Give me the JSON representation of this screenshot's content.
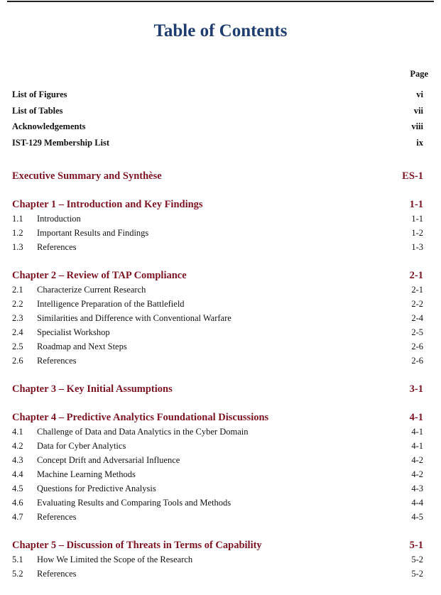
{
  "title": "Table of Contents",
  "page_header": "Page",
  "colors": {
    "title": "#1f3d6e",
    "chapter": "#7a1424"
  },
  "front_matter": [
    {
      "label": "List of Figures",
      "page": "vi"
    },
    {
      "label": "List of Tables",
      "page": "vii"
    },
    {
      "label": "Acknowledgements",
      "page": "viii"
    },
    {
      "label": "IST-129 Membership List",
      "page": "ix"
    }
  ],
  "chapters": [
    {
      "title": "Executive Summary and Synthèse",
      "page": "ES-1",
      "sections": []
    },
    {
      "title": "Chapter 1 – Introduction and Key Findings",
      "page": "1-1",
      "sections": [
        {
          "num": "1.1",
          "title": "Introduction",
          "page": "1-1"
        },
        {
          "num": "1.2",
          "title": "Important Results and Findings",
          "page": "1-2"
        },
        {
          "num": "1.3",
          "title": "References",
          "page": "1-3"
        }
      ]
    },
    {
      "title": "Chapter 2 – Review of TAP Compliance",
      "page": "2-1",
      "sections": [
        {
          "num": "2.1",
          "title": "Characterize Current Research",
          "page": "2-1"
        },
        {
          "num": "2.2",
          "title": "Intelligence Preparation of the Battlefield",
          "page": "2-2"
        },
        {
          "num": "2.3",
          "title": "Similarities and Difference with Conventional Warfare",
          "page": "2-4"
        },
        {
          "num": "2.4",
          "title": "Specialist Workshop",
          "page": "2-5"
        },
        {
          "num": "2.5",
          "title": "Roadmap and Next Steps",
          "page": "2-6"
        },
        {
          "num": "2.6",
          "title": "References",
          "page": "2-6"
        }
      ]
    },
    {
      "title": "Chapter 3 – Key Initial Assumptions",
      "page": "3-1",
      "sections": []
    },
    {
      "title": "Chapter 4 – Predictive Analytics Foundational Discussions",
      "page": "4-1",
      "sections": [
        {
          "num": "4.1",
          "title": "Challenge of Data and Data Analytics in the Cyber Domain",
          "page": "4-1"
        },
        {
          "num": "4.2",
          "title": "Data for Cyber Analytics",
          "page": "4-1"
        },
        {
          "num": "4.3",
          "title": "Concept Drift and Adversarial Influence",
          "page": "4-2"
        },
        {
          "num": "4.4",
          "title": "Machine Learning Methods",
          "page": "4-2"
        },
        {
          "num": "4.5",
          "title": "Questions for Predictive Analysis",
          "page": "4-3"
        },
        {
          "num": "4.6",
          "title": "Evaluating Results and Comparing Tools and Methods",
          "page": "4-4"
        },
        {
          "num": "4.7",
          "title": "References",
          "page": "4-5"
        }
      ]
    },
    {
      "title": "Chapter 5 – Discussion of Threats in Terms of Capability",
      "page": "5-1",
      "sections": [
        {
          "num": "5.1",
          "title": "How We Limited the Scope of the Research",
          "page": "5-2"
        },
        {
          "num": "5.2",
          "title": "References",
          "page": "5-2"
        }
      ]
    }
  ]
}
